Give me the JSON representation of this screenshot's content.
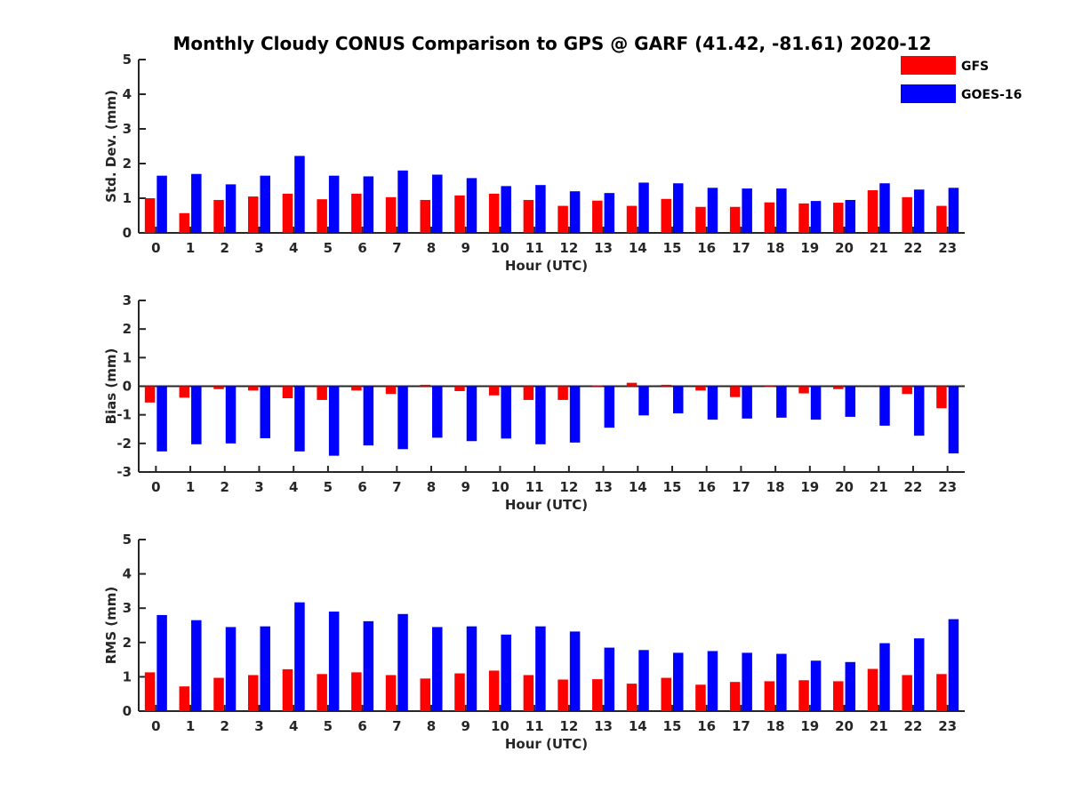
{
  "title": "Monthly Cloudy CONUS Comparison to GPS @ GARF (41.42, -81.61) 2020-12",
  "legend": {
    "placement": "top-right",
    "items": [
      {
        "label": "GFS",
        "color": "#ff0000"
      },
      {
        "label": "GOES-16",
        "color": "#0000ff"
      }
    ]
  },
  "chart_data": [
    {
      "type": "bar",
      "xlabel": "Hour (UTC)",
      "ylabel": "Std. Dev. (mm)",
      "ylim": [
        0,
        5
      ],
      "yticks": [
        "0",
        "1",
        "2",
        "3",
        "4",
        "5"
      ],
      "categories": [
        "0",
        "1",
        "2",
        "3",
        "4",
        "5",
        "6",
        "7",
        "8",
        "9",
        "10",
        "11",
        "12",
        "13",
        "14",
        "15",
        "16",
        "17",
        "18",
        "19",
        "20",
        "21",
        "22",
        "23"
      ],
      "series": [
        {
          "name": "GFS",
          "color": "#ff0000",
          "values": [
            1.0,
            0.57,
            0.95,
            1.05,
            1.13,
            0.97,
            1.13,
            1.03,
            0.95,
            1.08,
            1.13,
            0.95,
            0.78,
            0.93,
            0.78,
            0.98,
            0.75,
            0.75,
            0.88,
            0.85,
            0.87,
            1.23,
            1.03,
            0.78
          ]
        },
        {
          "name": "GOES-16",
          "color": "#0000ff",
          "values": [
            1.65,
            1.7,
            1.4,
            1.65,
            2.22,
            1.65,
            1.63,
            1.8,
            1.68,
            1.58,
            1.35,
            1.38,
            1.2,
            1.15,
            1.45,
            1.43,
            1.3,
            1.28,
            1.28,
            0.92,
            0.95,
            1.43,
            1.25,
            1.3
          ]
        }
      ]
    },
    {
      "type": "bar",
      "xlabel": "Hour (UTC)",
      "ylabel": "Bias (mm)",
      "ylim": [
        -3,
        3
      ],
      "yticks": [
        "-3",
        "-2",
        "-1",
        "0",
        "1",
        "2",
        "3"
      ],
      "categories": [
        "0",
        "1",
        "2",
        "3",
        "4",
        "5",
        "6",
        "7",
        "8",
        "9",
        "10",
        "11",
        "12",
        "13",
        "14",
        "15",
        "16",
        "17",
        "18",
        "19",
        "20",
        "21",
        "22",
        "23"
      ],
      "series": [
        {
          "name": "GFS",
          "color": "#ff0000",
          "values": [
            -0.57,
            -0.4,
            -0.1,
            -0.15,
            -0.42,
            -0.48,
            -0.15,
            -0.27,
            0.05,
            -0.17,
            -0.32,
            -0.48,
            -0.48,
            0.03,
            0.12,
            0.05,
            -0.15,
            -0.38,
            -0.03,
            -0.25,
            -0.1,
            0.0,
            -0.27,
            -0.77
          ]
        },
        {
          "name": "GOES-16",
          "color": "#0000ff",
          "values": [
            -2.28,
            -2.03,
            -2.0,
            -1.82,
            -2.28,
            -2.43,
            -2.07,
            -2.2,
            -1.8,
            -1.92,
            -1.83,
            -2.03,
            -1.97,
            -1.45,
            -1.02,
            -0.95,
            -1.17,
            -1.13,
            -1.1,
            -1.17,
            -1.07,
            -1.38,
            -1.73,
            -2.35
          ]
        }
      ]
    },
    {
      "type": "bar",
      "xlabel": "Hour (UTC)",
      "ylabel": "RMS (mm)",
      "ylim": [
        0,
        5
      ],
      "yticks": [
        "0",
        "1",
        "2",
        "3",
        "4",
        "5"
      ],
      "categories": [
        "0",
        "1",
        "2",
        "3",
        "4",
        "5",
        "6",
        "7",
        "8",
        "9",
        "10",
        "11",
        "12",
        "13",
        "14",
        "15",
        "16",
        "17",
        "18",
        "19",
        "20",
        "21",
        "22",
        "23"
      ],
      "series": [
        {
          "name": "GFS",
          "color": "#ff0000",
          "values": [
            1.13,
            0.72,
            0.97,
            1.05,
            1.22,
            1.08,
            1.13,
            1.05,
            0.95,
            1.1,
            1.18,
            1.05,
            0.92,
            0.93,
            0.8,
            0.97,
            0.77,
            0.85,
            0.87,
            0.9,
            0.87,
            1.23,
            1.05,
            1.08
          ]
        },
        {
          "name": "GOES-16",
          "color": "#0000ff",
          "values": [
            2.8,
            2.65,
            2.45,
            2.47,
            3.17,
            2.9,
            2.62,
            2.83,
            2.45,
            2.47,
            2.23,
            2.47,
            2.32,
            1.85,
            1.78,
            1.7,
            1.75,
            1.7,
            1.67,
            1.47,
            1.43,
            1.98,
            2.12,
            2.68
          ]
        }
      ]
    }
  ]
}
